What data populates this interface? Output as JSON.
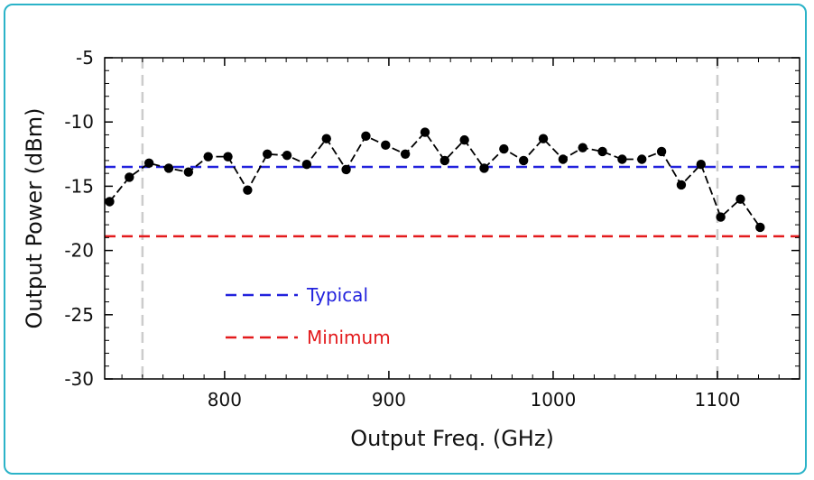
{
  "chart_data": {
    "type": "line",
    "title": "",
    "xlabel": "Output Freq. (GHz)",
    "ylabel": "Output Power (dBm)",
    "xlim": [
      727,
      1150
    ],
    "ylim": [
      -30,
      -5
    ],
    "x_ticks": [
      800,
      900,
      1000,
      1100
    ],
    "y_ticks": [
      -5,
      -10,
      -15,
      -20,
      -25,
      -30
    ],
    "grid": false,
    "legend": {
      "placement": "lower-left",
      "entries": [
        {
          "label": "Typical",
          "color": "#2222dd"
        },
        {
          "label": "Minimum",
          "color": "#e31a1c"
        }
      ]
    },
    "reference_lines": [
      {
        "name": "Typical",
        "y": -13.5,
        "color": "#2222dd",
        "style": "dashed"
      },
      {
        "name": "Minimum",
        "y": -18.9,
        "color": "#e31a1c",
        "style": "dashed"
      }
    ],
    "band_edges": [
      {
        "x": 750,
        "color": "#cccccc",
        "style": "dashed"
      },
      {
        "x": 1100,
        "color": "#cccccc",
        "style": "dashed"
      }
    ],
    "series": [
      {
        "color": "#000000",
        "x": [
          730,
          742,
          754,
          766,
          778,
          790,
          802,
          814,
          826,
          838,
          850,
          862,
          874,
          886,
          898,
          910,
          922,
          934,
          946,
          958,
          970,
          982,
          994,
          1006,
          1018,
          1030,
          1042,
          1054,
          1066,
          1078,
          1090,
          1102,
          1114,
          1126
        ],
        "y": [
          -16.2,
          -14.3,
          -13.2,
          -13.6,
          -13.9,
          -12.7,
          -12.7,
          -15.3,
          -12.5,
          -12.6,
          -13.3,
          -11.3,
          -13.7,
          -11.1,
          -11.8,
          -12.5,
          -10.8,
          -13.0,
          -11.4,
          -13.6,
          -12.1,
          -13.0,
          -11.3,
          -12.9,
          -12.0,
          -12.3,
          -12.9,
          -12.9,
          -12.3,
          -14.9,
          -13.3,
          -17.4,
          -16.0,
          -18.2
        ]
      }
    ]
  }
}
